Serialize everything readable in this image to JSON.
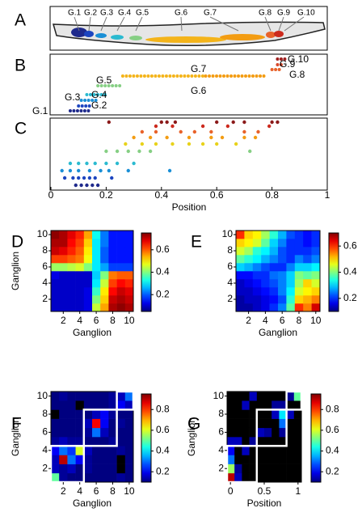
{
  "chart_data": [
    {
      "type": "anatomy",
      "panel": "A",
      "labels": [
        "G.1",
        "G.2",
        "G.3",
        "G.4",
        "G.5",
        "G.6",
        "G.7",
        "G.8",
        "G.9",
        "G.10"
      ]
    },
    {
      "type": "range",
      "panel": "B",
      "series": [
        {
          "name": "G.1",
          "color": "#1f2a8c",
          "x": [
            0.07,
            0.14
          ]
        },
        {
          "name": "G.2",
          "color": "#1c45c0",
          "x": [
            0.1,
            0.15
          ]
        },
        {
          "name": "G.3",
          "color": "#1a8fd6",
          "x": [
            0.11,
            0.17
          ]
        },
        {
          "name": "G.4",
          "color": "#2bbad0",
          "x": [
            0.13,
            0.2
          ]
        },
        {
          "name": "G.5",
          "color": "#86cf84",
          "x": [
            0.17,
            0.25
          ]
        },
        {
          "name": "G.6",
          "color": "#f4b41a",
          "x": [
            0.26,
            0.56
          ]
        },
        {
          "name": "G.7",
          "color": "#f39c12",
          "x": [
            0.56,
            0.78
          ]
        },
        {
          "name": "G.8",
          "color": "#e8622a",
          "x": [
            0.8,
            0.83
          ]
        },
        {
          "name": "G.9",
          "color": "#d9482a",
          "x": [
            0.82,
            0.84
          ]
        },
        {
          "name": "G.10",
          "color": "#9e1f1f",
          "x": [
            0.82,
            0.85
          ]
        }
      ]
    },
    {
      "type": "scatter",
      "panel": "C",
      "xlabel": "Position",
      "xlim": [
        0,
        1
      ],
      "xticks": [
        0,
        0.2,
        0.4,
        0.6,
        0.8,
        1
      ],
      "series": [
        {
          "color": "#1f2a8c",
          "x": [
            0.09,
            0.11,
            0.13,
            0.15,
            0.17
          ]
        },
        {
          "color": "#1c45c0",
          "x": [
            0.05,
            0.08,
            0.1,
            0.12,
            0.14,
            0.16,
            0.22
          ]
        },
        {
          "color": "#1a8fd6",
          "x": [
            0.04,
            0.07,
            0.1,
            0.14,
            0.18,
            0.21,
            0.28,
            0.43
          ]
        },
        {
          "color": "#2bbad0",
          "x": [
            0.07,
            0.1,
            0.13,
            0.16,
            0.2,
            0.24,
            0.3
          ]
        },
        {
          "color": "#86cf84",
          "x": [
            0.2,
            0.24,
            0.28,
            0.32,
            0.36,
            0.72
          ]
        },
        {
          "color": "#e8d21a",
          "x": [
            0.27,
            0.33,
            0.38,
            0.44,
            0.5,
            0.55,
            0.6,
            0.67
          ]
        },
        {
          "color": "#f39c12",
          "x": [
            0.3,
            0.36,
            0.42,
            0.5,
            0.58,
            0.62,
            0.7,
            0.74
          ]
        },
        {
          "color": "#e8622a",
          "x": [
            0.33,
            0.38,
            0.47,
            0.52,
            0.58,
            0.7,
            0.75
          ]
        },
        {
          "color": "#cc2a1e",
          "x": [
            0.38,
            0.44,
            0.55,
            0.64,
            0.79
          ]
        },
        {
          "color": "#8b1a1a",
          "x": [
            0.21,
            0.4,
            0.42,
            0.45,
            0.6,
            0.66,
            0.7,
            0.8,
            0.82
          ]
        }
      ]
    },
    {
      "type": "heatmap",
      "panel": "D",
      "xlabel": "Ganglion",
      "ylabel": "Ganglion",
      "colormap": "jet",
      "xlim": [
        0.5,
        10.5
      ],
      "ylim": [
        0.5,
        10.5
      ],
      "xticks": [
        2,
        4,
        6,
        8,
        10
      ],
      "yticks": [
        2,
        4,
        6,
        8,
        10
      ],
      "clim": [
        0.05,
        0.75
      ],
      "colorbar_ticks": [
        0.2,
        0.4,
        0.6
      ],
      "values": [
        [
          0.1,
          0.1,
          0.1,
          0.1,
          0.12,
          0.45,
          0.55,
          0.72,
          0.74,
          0.72
        ],
        [
          0.1,
          0.1,
          0.1,
          0.1,
          0.12,
          0.4,
          0.52,
          0.7,
          0.72,
          0.7
        ],
        [
          0.1,
          0.1,
          0.1,
          0.1,
          0.12,
          0.35,
          0.5,
          0.66,
          0.7,
          0.68
        ],
        [
          0.1,
          0.1,
          0.1,
          0.1,
          0.1,
          0.3,
          0.45,
          0.62,
          0.66,
          0.64
        ],
        [
          0.12,
          0.1,
          0.1,
          0.1,
          0.1,
          0.28,
          0.4,
          0.58,
          0.6,
          0.6
        ],
        [
          0.42,
          0.42,
          0.44,
          0.46,
          0.4,
          0.3,
          0.25,
          0.18,
          0.18,
          0.18
        ],
        [
          0.62,
          0.62,
          0.6,
          0.58,
          0.48,
          0.3,
          0.2,
          0.15,
          0.15,
          0.15
        ],
        [
          0.7,
          0.68,
          0.64,
          0.6,
          0.5,
          0.3,
          0.2,
          0.15,
          0.15,
          0.15
        ],
        [
          0.72,
          0.72,
          0.66,
          0.62,
          0.52,
          0.3,
          0.22,
          0.15,
          0.15,
          0.15
        ],
        [
          0.74,
          0.72,
          0.68,
          0.64,
          0.55,
          0.32,
          0.22,
          0.15,
          0.15,
          0.15
        ]
      ]
    },
    {
      "type": "heatmap",
      "panel": "E",
      "xlabel": "Ganglion",
      "colormap": "jet",
      "xlim": [
        0.5,
        10.5
      ],
      "ylim": [
        0.5,
        10.5
      ],
      "xticks": [
        2,
        4,
        6,
        8,
        10
      ],
      "yticks": [
        2,
        4,
        6,
        8,
        10
      ],
      "clim": [
        0.1,
        0.7
      ],
      "colorbar_ticks": [
        0.2,
        0.4,
        0.6
      ],
      "values": [
        [
          0.12,
          0.12,
          0.14,
          0.16,
          0.2,
          0.25,
          0.38,
          0.6,
          0.55,
          0.65
        ],
        [
          0.12,
          0.14,
          0.14,
          0.16,
          0.18,
          0.22,
          0.35,
          0.5,
          0.52,
          0.55
        ],
        [
          0.14,
          0.14,
          0.16,
          0.18,
          0.2,
          0.25,
          0.32,
          0.45,
          0.48,
          0.5
        ],
        [
          0.14,
          0.16,
          0.18,
          0.2,
          0.22,
          0.25,
          0.3,
          0.42,
          0.5,
          0.45
        ],
        [
          0.18,
          0.18,
          0.2,
          0.2,
          0.24,
          0.25,
          0.3,
          0.4,
          0.38,
          0.4
        ],
        [
          0.3,
          0.28,
          0.25,
          0.22,
          0.2,
          0.2,
          0.25,
          0.3,
          0.3,
          0.32
        ],
        [
          0.38,
          0.35,
          0.32,
          0.28,
          0.25,
          0.22,
          0.2,
          0.25,
          0.22,
          0.25
        ],
        [
          0.45,
          0.42,
          0.35,
          0.32,
          0.28,
          0.22,
          0.2,
          0.2,
          0.2,
          0.22
        ],
        [
          0.5,
          0.48,
          0.45,
          0.38,
          0.3,
          0.25,
          0.2,
          0.2,
          0.18,
          0.2
        ],
        [
          0.6,
          0.5,
          0.48,
          0.42,
          0.35,
          0.28,
          0.22,
          0.2,
          0.18,
          0.2
        ]
      ]
    },
    {
      "type": "heatmap",
      "panel": "F",
      "xlabel": "Ganglion",
      "ylabel": "Ganglion",
      "colormap": "jet",
      "null_color": "#000000",
      "xlim": [
        0.5,
        10.5
      ],
      "ylim": [
        0.5,
        10.5
      ],
      "xticks": [
        2,
        4,
        6,
        8,
        10
      ],
      "yticks": [
        2,
        4,
        6,
        8,
        10
      ],
      "clim": [
        0.1,
        0.95
      ],
      "colorbar_ticks": [
        0.2,
        0.4,
        0.6,
        0.8
      ],
      "clusters": [
        [
          1,
          4
        ],
        [
          5,
          8
        ],
        [
          9,
          10
        ]
      ],
      "values": [
        [
          0.5,
          0.12,
          0.1,
          0.1,
          0.1,
          0.1,
          0.1,
          0.1,
          0.12,
          0.1
        ],
        [
          0.15,
          0.12,
          0.15,
          0.1,
          0.12,
          0.1,
          0.1,
          0.1,
          null,
          0.1
        ],
        [
          0.15,
          0.9,
          0.3,
          0.2,
          0.12,
          0.1,
          0.1,
          0.1,
          null,
          0.1
        ],
        [
          0.2,
          0.3,
          0.25,
          0.6,
          0.15,
          0.1,
          0.1,
          0.1,
          0.12,
          0.1
        ],
        [
          0.12,
          0.15,
          0.12,
          0.12,
          0.1,
          0.1,
          0.1,
          0.12,
          0.1,
          0.1
        ],
        [
          0.1,
          0.1,
          0.1,
          0.1,
          0.12,
          0.3,
          0.15,
          0.1,
          0.1,
          0.1
        ],
        [
          0.1,
          0.1,
          0.1,
          0.1,
          0.15,
          0.85,
          0.2,
          0.1,
          0.12,
          0.1
        ],
        [
          null,
          0.1,
          0.1,
          0.1,
          0.1,
          0.15,
          0.2,
          0.12,
          0.1,
          0.1
        ],
        [
          0.1,
          0.1,
          0.1,
          null,
          0.1,
          0.1,
          0.1,
          0.12,
          0.2,
          0.15
        ],
        [
          0.1,
          0.12,
          0.1,
          0.1,
          0.1,
          0.1,
          0.1,
          0.12,
          0.15,
          0.3
        ]
      ]
    },
    {
      "type": "heatmap",
      "panel": "G",
      "xlabel": "Position",
      "ylabel": "Ganglion",
      "colormap": "jet",
      "null_color": "#000000",
      "xlim": [
        -0.05,
        1.05
      ],
      "ylim": [
        0.5,
        10.5
      ],
      "xticks": [
        0,
        {
          "value": 0.5,
          "label": "0.5"
        },
        1
      ],
      "yticks": [
        2,
        4,
        6,
        8,
        10
      ],
      "clim": [
        0.1,
        0.95
      ],
      "colorbar_ticks": [
        0.2,
        0.4,
        0.6,
        0.8
      ],
      "clusters": [
        [
          1,
          4
        ],
        [
          5,
          8
        ],
        [
          9,
          10
        ]
      ],
      "values": [
        [
          0.9,
          0.15,
          null,
          null,
          null,
          null,
          null,
          null,
          null,
          null
        ],
        [
          0.55,
          0.12,
          null,
          null,
          null,
          null,
          null,
          null,
          null,
          null
        ],
        [
          0.3,
          null,
          null,
          null,
          null,
          null,
          null,
          null,
          null,
          null
        ],
        [
          0.2,
          null,
          0.15,
          null,
          null,
          null,
          null,
          null,
          null,
          null
        ],
        [
          0.15,
          0.15,
          null,
          0.12,
          null,
          null,
          null,
          null,
          null,
          null
        ],
        [
          null,
          null,
          null,
          null,
          0.15,
          0.12,
          null,
          0.12,
          null,
          null
        ],
        [
          null,
          null,
          null,
          null,
          null,
          null,
          null,
          0.3,
          null,
          null
        ],
        [
          null,
          null,
          null,
          null,
          null,
          null,
          0.15,
          0.4,
          0.15,
          null
        ],
        [
          null,
          null,
          0.15,
          null,
          null,
          null,
          0.12,
          0.12,
          null,
          null
        ],
        [
          null,
          null,
          null,
          0.15,
          null,
          null,
          null,
          null,
          0.12,
          0.5
        ]
      ]
    }
  ]
}
